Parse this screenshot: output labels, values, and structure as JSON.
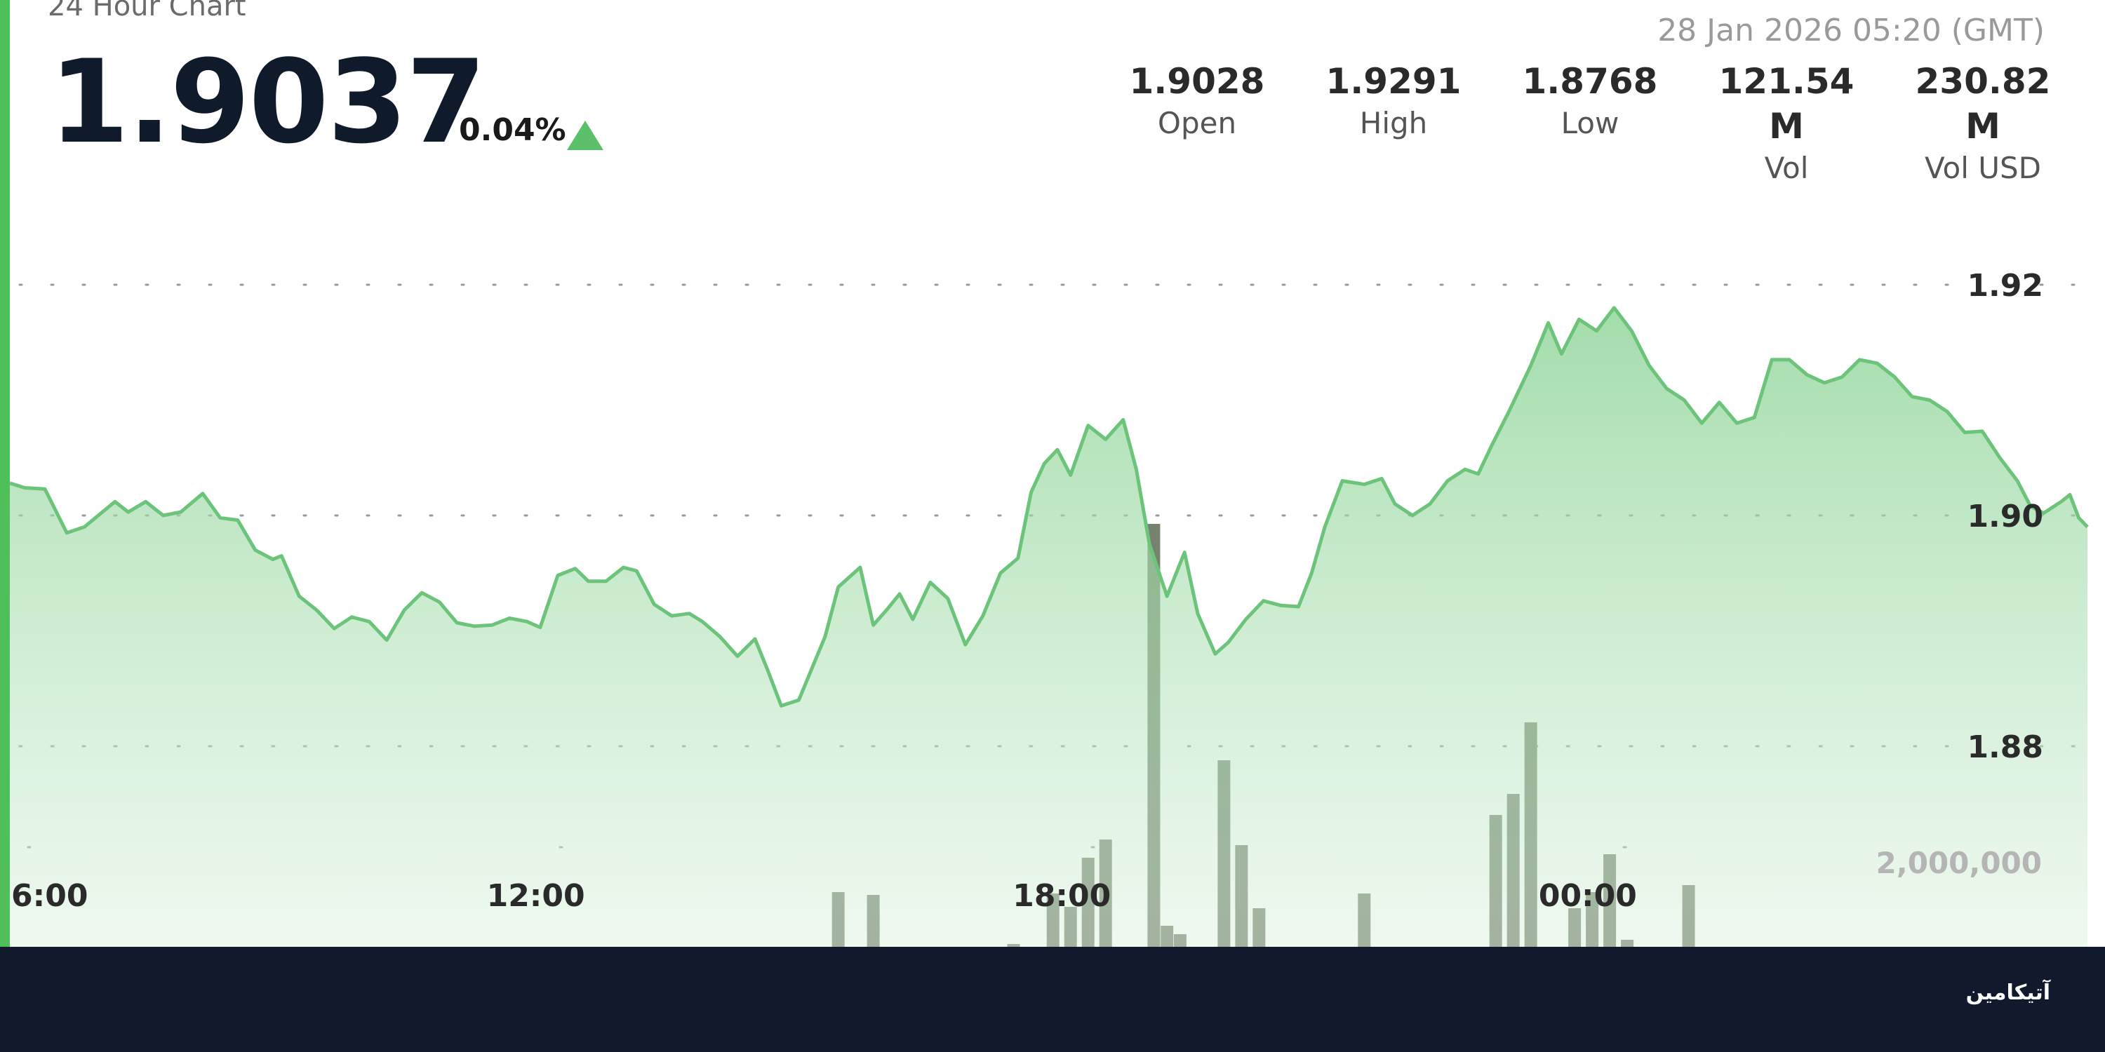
{
  "header": {
    "chart_label": "24 Hour Chart",
    "price": "1.9037",
    "change": "0.04%",
    "timestamp": "28 Jan 2026 05:20 (GMT)"
  },
  "stats": [
    {
      "value": "1.9028",
      "label": "Open"
    },
    {
      "value": "1.9291",
      "label": "High"
    },
    {
      "value": "1.8768",
      "label": "Low"
    },
    {
      "value": "121.54 M",
      "label": "Vol"
    },
    {
      "value": "230.82 M",
      "label": "Vol USD"
    }
  ],
  "footer": {
    "logo_text": "آتیکامین"
  },
  "colors": {
    "accent": "#4fbf5a",
    "line": "#6cc47a",
    "volume": "#76826f",
    "footer": "#111a2c"
  },
  "chart_data": {
    "type": "area",
    "title": "24 Hour Chart",
    "y_ticks": [
      "1.92",
      "1.90",
      "1.88"
    ],
    "y_tick_values": [
      1.92,
      1.9,
      1.88
    ],
    "ylim": [
      1.8689,
      1.9354
    ],
    "x_ticks": [
      "6:00",
      "12:00",
      "18:00",
      "00:00"
    ],
    "x_tick_hours": [
      0,
      6,
      12,
      18
    ],
    "x_range_hours": [
      0,
      23.9
    ],
    "grid": true,
    "series": [
      {
        "values": [
          [
            0.0,
            1.9028
          ],
          [
            0.17,
            1.9024
          ],
          [
            0.4,
            1.9023
          ],
          [
            0.65,
            1.8985
          ],
          [
            0.85,
            1.899
          ],
          [
            1.2,
            1.9012
          ],
          [
            1.35,
            1.9003
          ],
          [
            1.55,
            1.9012
          ],
          [
            1.75,
            1.9
          ],
          [
            1.95,
            1.9003
          ],
          [
            2.2,
            1.9019
          ],
          [
            2.4,
            1.8998
          ],
          [
            2.6,
            1.8996
          ],
          [
            2.8,
            1.897
          ],
          [
            3.0,
            1.8962
          ],
          [
            3.1,
            1.8965
          ],
          [
            3.3,
            1.893
          ],
          [
            3.5,
            1.8918
          ],
          [
            3.7,
            1.8902
          ],
          [
            3.9,
            1.8912
          ],
          [
            4.1,
            1.8908
          ],
          [
            4.3,
            1.8892
          ],
          [
            4.5,
            1.8918
          ],
          [
            4.7,
            1.8933
          ],
          [
            4.9,
            1.8925
          ],
          [
            5.1,
            1.8907
          ],
          [
            5.3,
            1.8904
          ],
          [
            5.5,
            1.8905
          ],
          [
            5.7,
            1.8911
          ],
          [
            5.9,
            1.8908
          ],
          [
            6.05,
            1.8903
          ],
          [
            6.25,
            1.8948
          ],
          [
            6.45,
            1.8954
          ],
          [
            6.6,
            1.8943
          ],
          [
            6.8,
            1.8943
          ],
          [
            7.0,
            1.8955
          ],
          [
            7.15,
            1.8952
          ],
          [
            7.35,
            1.8923
          ],
          [
            7.55,
            1.8913
          ],
          [
            7.75,
            1.8915
          ],
          [
            7.9,
            1.8908
          ],
          [
            8.1,
            1.8895
          ],
          [
            8.3,
            1.8878
          ],
          [
            8.5,
            1.8893
          ],
          [
            8.65,
            1.8865
          ],
          [
            8.8,
            1.8835
          ],
          [
            9.0,
            1.884
          ],
          [
            9.3,
            1.8895
          ],
          [
            9.45,
            1.8938
          ],
          [
            9.7,
            1.8955
          ],
          [
            9.85,
            1.8905
          ],
          [
            10.0,
            1.8918
          ],
          [
            10.15,
            1.8932
          ],
          [
            10.3,
            1.891
          ],
          [
            10.5,
            1.8942
          ],
          [
            10.7,
            1.8928
          ],
          [
            10.9,
            1.8888
          ],
          [
            11.1,
            1.8913
          ],
          [
            11.3,
            1.895
          ],
          [
            11.5,
            1.8963
          ],
          [
            11.65,
            1.902
          ],
          [
            11.8,
            1.9045
          ],
          [
            11.95,
            1.9057
          ],
          [
            12.1,
            1.9035
          ],
          [
            12.3,
            1.9078
          ],
          [
            12.5,
            1.9066
          ],
          [
            12.7,
            1.9083
          ],
          [
            12.85,
            1.904
          ],
          [
            13.0,
            1.8975
          ],
          [
            13.2,
            1.893
          ],
          [
            13.4,
            1.8968
          ],
          [
            13.55,
            1.8915
          ],
          [
            13.75,
            1.888
          ],
          [
            13.9,
            1.889
          ],
          [
            14.1,
            1.891
          ],
          [
            14.3,
            1.8926
          ],
          [
            14.5,
            1.8922
          ],
          [
            14.7,
            1.8921
          ],
          [
            14.85,
            1.895
          ],
          [
            15.0,
            1.899
          ],
          [
            15.2,
            1.903
          ],
          [
            15.45,
            1.9027
          ],
          [
            15.65,
            1.9032
          ],
          [
            15.8,
            1.901
          ],
          [
            16.0,
            1.9
          ],
          [
            16.2,
            1.901
          ],
          [
            16.4,
            1.903
          ],
          [
            16.6,
            1.904
          ],
          [
            16.75,
            1.9036
          ],
          [
            16.9,
            1.906
          ],
          [
            17.1,
            1.909
          ],
          [
            17.35,
            1.913
          ],
          [
            17.55,
            1.9167
          ],
          [
            17.7,
            1.914
          ],
          [
            17.9,
            1.917
          ],
          [
            18.1,
            1.916
          ],
          [
            18.3,
            1.918
          ],
          [
            18.5,
            1.916
          ],
          [
            18.7,
            1.913
          ],
          [
            18.9,
            1.911
          ],
          [
            19.1,
            1.91
          ],
          [
            19.3,
            1.908
          ],
          [
            19.5,
            1.9098
          ],
          [
            19.7,
            1.908
          ],
          [
            19.9,
            1.9085
          ],
          [
            20.1,
            1.9135
          ],
          [
            20.3,
            1.9135
          ],
          [
            20.5,
            1.9122
          ],
          [
            20.7,
            1.9115
          ],
          [
            20.9,
            1.912
          ],
          [
            21.1,
            1.9135
          ],
          [
            21.3,
            1.9132
          ],
          [
            21.5,
            1.912
          ],
          [
            21.7,
            1.9103
          ],
          [
            21.9,
            1.91
          ],
          [
            22.1,
            1.909
          ],
          [
            22.3,
            1.9072
          ],
          [
            22.5,
            1.9073
          ],
          [
            22.7,
            1.905
          ],
          [
            22.9,
            1.903
          ],
          [
            23.05,
            1.9008
          ],
          [
            23.2,
            1.9002
          ],
          [
            23.4,
            1.9012
          ],
          [
            23.5,
            1.9018
          ],
          [
            23.6,
            1.8998
          ],
          [
            23.7,
            1.899
          ]
        ]
      }
    ]
  }
}
